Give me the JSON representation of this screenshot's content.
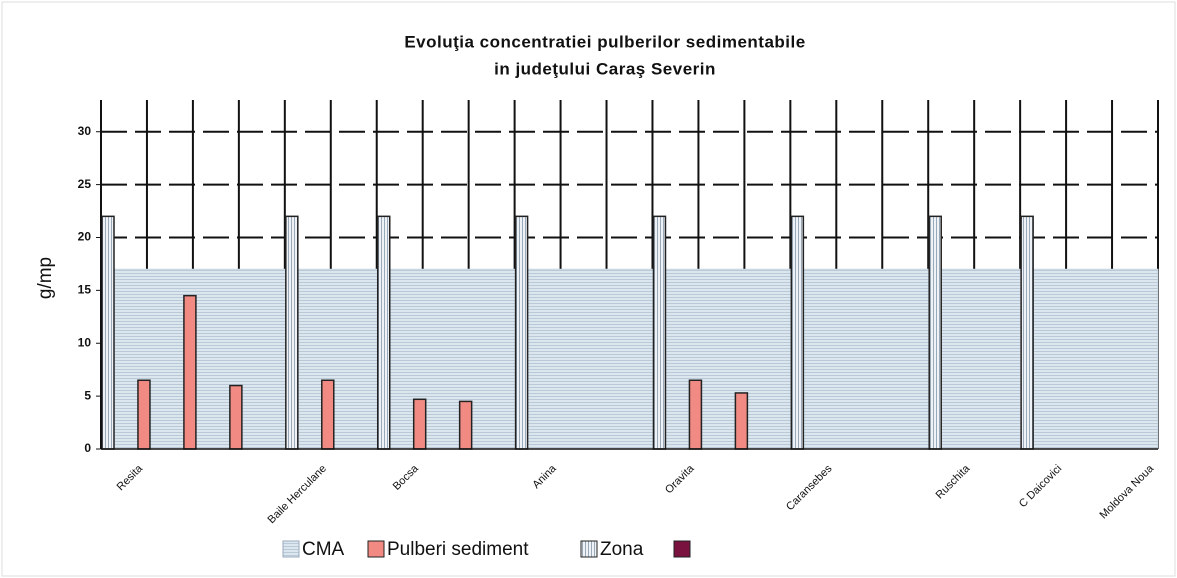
{
  "chart_data": {
    "type": "bar",
    "title": [
      "Evoluţia concentratiei pulberilor sedimentabile",
      "in judeţului Caraş Severin"
    ],
    "y_label": "g/mp",
    "categories": [
      "Resita",
      null,
      null,
      null,
      "Baile Herculane",
      null,
      "Bocsa",
      null,
      null,
      "Anina",
      null,
      null,
      "Oravita",
      null,
      null,
      "Caransebes",
      null,
      null,
      "Ruschita",
      null,
      "C Daicovici",
      null,
      "Moldova Noua"
    ],
    "ylim": [
      0,
      33
    ],
    "yticks": [
      0,
      5,
      10,
      15,
      20,
      25,
      30
    ],
    "grid": true,
    "series": [
      {
        "name": "CMA",
        "color": "#dce6ef",
        "kind": "area",
        "values": [
          17,
          17,
          17,
          17,
          17,
          17,
          17,
          17,
          17,
          17,
          17,
          17,
          17,
          17,
          17,
          17,
          17,
          17,
          17,
          17,
          17,
          17,
          17
        ]
      },
      {
        "name": "Pulberi sediment",
        "color": "#f08a82",
        "kind": "bar",
        "values": [
          6.5,
          14.5,
          6,
          null,
          6.5,
          null,
          4.7,
          4.5,
          null,
          null,
          null,
          null,
          6.5,
          5.3,
          null,
          null,
          null,
          null,
          null,
          null,
          null,
          null,
          null
        ]
      },
      {
        "name": "Zona",
        "color": "#e4ecf2",
        "kind": "bar",
        "values": [
          22,
          null,
          null,
          null,
          22,
          null,
          22,
          null,
          null,
          22,
          null,
          null,
          22,
          null,
          null,
          22,
          null,
          null,
          22,
          null,
          22,
          null,
          null
        ]
      }
    ]
  }
}
